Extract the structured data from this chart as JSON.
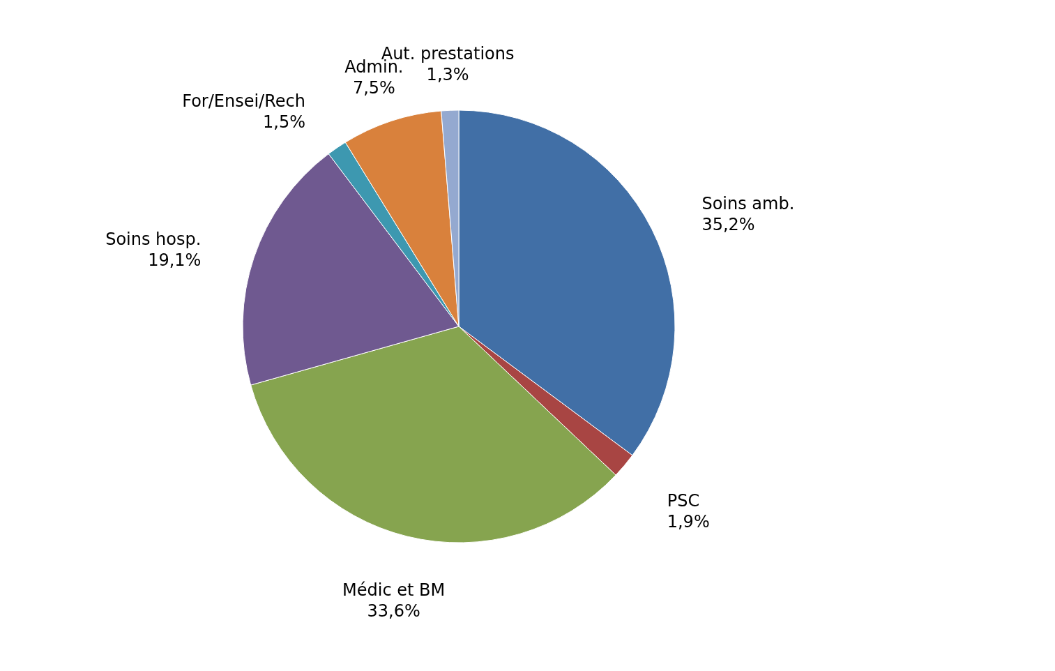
{
  "chart_data": {
    "type": "pie",
    "categories": [
      "Soins amb.",
      "PSC",
      "Médic et BM",
      "Soins hosp.",
      "For/Ensei/Rech",
      "Admin.",
      "Aut. prestations"
    ],
    "values": [
      35.2,
      1.9,
      33.6,
      19.1,
      1.5,
      7.5,
      1.3
    ],
    "value_labels": [
      "35,2%",
      "1,9%",
      "33,6%",
      "19,1%",
      "1,5%",
      "7,5%",
      "1,3%"
    ],
    "colors": [
      "#416fa6",
      "#a84543",
      "#86a44f",
      "#6f5990",
      "#3d98b0",
      "#d9813c",
      "#94a9d0"
    ],
    "legend": false
  }
}
